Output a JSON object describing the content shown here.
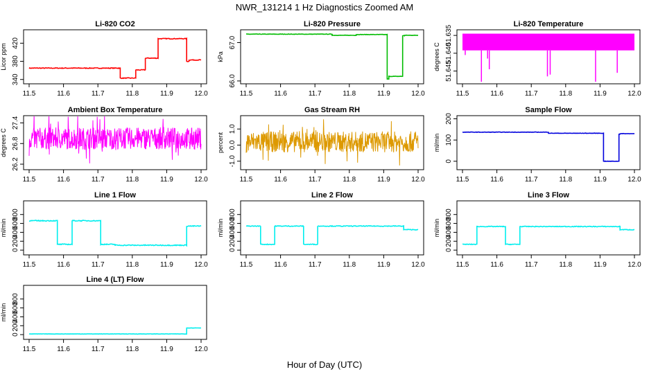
{
  "figure": {
    "title": "NWR_131214  1 Hz Diagnostics Zoomed AM",
    "xlabel": "Hour of Day (UTC)"
  },
  "chart_data": [
    {
      "type": "line",
      "title": "Li-820 CO2",
      "ylabel": "Licor ppm",
      "color": "#ff0000",
      "xlim": [
        11.5,
        12.0
      ],
      "ylim": [
        335,
        445
      ],
      "xticks": [
        "11.5",
        "11.6",
        "11.7",
        "11.8",
        "11.9",
        "12.0"
      ],
      "yticks": [
        {
          "v": 340,
          "l": "340"
        },
        {
          "v": 380,
          "l": "380"
        },
        {
          "v": 420,
          "l": "420"
        }
      ],
      "noise": 0.8,
      "segments": [
        [
          11.5,
          11.76,
          365
        ],
        [
          11.76,
          11.765,
          365
        ],
        [
          11.765,
          11.81,
          343
        ],
        [
          11.81,
          11.838,
          361
        ],
        [
          11.838,
          11.875,
          387
        ],
        [
          11.875,
          11.958,
          430
        ],
        [
          11.958,
          11.965,
          380
        ],
        [
          11.965,
          12.0,
          383
        ]
      ]
    },
    {
      "type": "line",
      "title": "Li-820 Pressure",
      "ylabel": "kPa",
      "color": "#00bb00",
      "xlim": [
        11.5,
        12.0
      ],
      "ylim": [
        65.98,
        67.28
      ],
      "xticks": [
        "11.5",
        "11.6",
        "11.7",
        "11.8",
        "11.9",
        "12.0"
      ],
      "yticks": [
        {
          "v": 66.0,
          "l": "66.0"
        },
        {
          "v": 67.0,
          "l": "67.0"
        }
      ],
      "noise": 0.005,
      "segments": [
        [
          11.5,
          11.75,
          67.22
        ],
        [
          11.75,
          11.82,
          67.19
        ],
        [
          11.82,
          11.91,
          67.21
        ],
        [
          11.91,
          11.915,
          66.05
        ],
        [
          11.915,
          11.955,
          66.12
        ],
        [
          11.955,
          11.96,
          67.18
        ],
        [
          11.96,
          12.0,
          67.19
        ]
      ]
    },
    {
      "type": "band",
      "title": "Li-820 Temperature",
      "ylabel": "degrees C",
      "color": "#ff00ff",
      "xlim": [
        11.5,
        12.0
      ],
      "ylim": [
        51.648,
        51.634
      ],
      "xticks": [
        "11.5",
        "11.6",
        "11.7",
        "11.8",
        "11.9",
        "12.0"
      ],
      "yticks": [
        {
          "v": 51.635,
          "l": "51.635"
        },
        {
          "v": 51.64,
          "l": "51.640"
        },
        {
          "v": 51.645,
          "l": "51.645"
        }
      ],
      "band": [
        51.6345,
        51.6392
      ],
      "spikes": [
        [
          11.508,
          51.6405
        ],
        [
          11.555,
          51.648
        ],
        [
          11.573,
          51.6415
        ],
        [
          11.578,
          51.6445
        ],
        [
          11.747,
          51.6465
        ],
        [
          11.755,
          51.646
        ],
        [
          11.887,
          51.648
        ],
        [
          11.95,
          51.6455
        ]
      ]
    },
    {
      "type": "noise",
      "title": "Ambient Box Temperature",
      "ylabel": "degrees C",
      "color": "#ff00ff",
      "xlim": [
        11.5,
        12.0
      ],
      "ylim": [
        26.1,
        27.55
      ],
      "xticks": [
        "11.5",
        "11.6",
        "11.7",
        "11.8",
        "11.9",
        "12.0"
      ],
      "yticks": [
        {
          "v": 26.2,
          "l": "26.2"
        },
        {
          "v": 26.8,
          "l": "26.8"
        },
        {
          "v": 27.4,
          "l": "27.4"
        }
      ],
      "center": 26.95,
      "amplitude": 0.32
    },
    {
      "type": "noise",
      "title": "Gas Stream RH",
      "ylabel": "percent",
      "color": "#dd9900",
      "xlim": [
        11.5,
        12.0
      ],
      "ylim": [
        -1.4,
        1.7
      ],
      "xticks": [
        "11.5",
        "11.6",
        "11.7",
        "11.8",
        "11.9",
        "12.0"
      ],
      "yticks": [
        {
          "v": -1.0,
          "l": "-1.0"
        },
        {
          "v": 0.0,
          "l": "0.0"
        },
        {
          "v": 1.0,
          "l": "1.0"
        }
      ],
      "center": 0.2,
      "amplitude": 0.65
    },
    {
      "type": "line",
      "title": "Sample Flow",
      "ylabel": "ml/min",
      "color": "#0000dd",
      "xlim": [
        11.5,
        12.0
      ],
      "ylim": [
        -30,
        205
      ],
      "xticks": [
        "11.5",
        "11.6",
        "11.7",
        "11.8",
        "11.9",
        "12.0"
      ],
      "yticks": [
        {
          "v": 0,
          "l": "0"
        },
        {
          "v": 100,
          "l": "100"
        },
        {
          "v": 200,
          "l": "200"
        }
      ],
      "noise": 0.8,
      "segments": [
        [
          11.5,
          11.75,
          137
        ],
        [
          11.75,
          11.91,
          132
        ],
        [
          11.91,
          11.915,
          0
        ],
        [
          11.915,
          11.955,
          0
        ],
        [
          11.955,
          11.958,
          128
        ],
        [
          11.958,
          12.0,
          130
        ]
      ]
    },
    {
      "type": "line",
      "title": "Line 1 Flow",
      "ylabel": "ml/min",
      "color": "#00eeee",
      "xlim": [
        11.5,
        12.0
      ],
      "ylim": [
        -60,
        1060
      ],
      "xticks": [
        "11.5",
        "11.6",
        "11.7",
        "11.8",
        "11.9",
        "12.0"
      ],
      "yticks": [
        {
          "v": 0,
          "l": "0"
        },
        {
          "v": 200,
          "l": "200"
        },
        {
          "v": 400,
          "l": "400"
        },
        {
          "v": 600,
          "l": "600"
        },
        {
          "v": 800,
          "l": "800"
        }
      ],
      "noise": 10,
      "segments": [
        [
          11.5,
          11.582,
          660
        ],
        [
          11.582,
          11.625,
          130
        ],
        [
          11.625,
          11.708,
          660
        ],
        [
          11.708,
          11.75,
          130
        ],
        [
          11.75,
          11.958,
          110
        ],
        [
          11.958,
          12.0,
          540
        ]
      ]
    },
    {
      "type": "line",
      "title": "Line 2 Flow",
      "ylabel": "ml/min",
      "color": "#00eeee",
      "xlim": [
        11.5,
        12.0
      ],
      "ylim": [
        -60,
        1060
      ],
      "xticks": [
        "11.5",
        "11.6",
        "11.7",
        "11.8",
        "11.9",
        "12.0"
      ],
      "yticks": [
        {
          "v": 0,
          "l": "0"
        },
        {
          "v": 200,
          "l": "200"
        },
        {
          "v": 400,
          "l": "400"
        },
        {
          "v": 600,
          "l": "600"
        },
        {
          "v": 800,
          "l": "800"
        }
      ],
      "noise": 8,
      "segments": [
        [
          11.5,
          11.542,
          540
        ],
        [
          11.542,
          11.583,
          130
        ],
        [
          11.583,
          11.667,
          540
        ],
        [
          11.667,
          11.708,
          130
        ],
        [
          11.708,
          11.958,
          540
        ],
        [
          11.958,
          12.0,
          460
        ]
      ]
    },
    {
      "type": "line",
      "title": "Line 3 Flow",
      "ylabel": "ml/min",
      "color": "#00eeee",
      "xlim": [
        11.5,
        12.0
      ],
      "ylim": [
        -60,
        1060
      ],
      "xticks": [
        "11.5",
        "11.6",
        "11.7",
        "11.8",
        "11.9",
        "12.0"
      ],
      "yticks": [
        {
          "v": 0,
          "l": "0"
        },
        {
          "v": 200,
          "l": "200"
        },
        {
          "v": 400,
          "l": "400"
        },
        {
          "v": 600,
          "l": "600"
        },
        {
          "v": 800,
          "l": "800"
        }
      ],
      "noise": 8,
      "segments": [
        [
          11.5,
          11.542,
          130
        ],
        [
          11.542,
          11.625,
          530
        ],
        [
          11.625,
          11.667,
          130
        ],
        [
          11.667,
          11.958,
          530
        ],
        [
          11.958,
          12.0,
          460
        ]
      ]
    },
    {
      "type": "line",
      "title": "Line 4 (LT) Flow",
      "ylabel": "ml/min",
      "color": "#00eeee",
      "xlim": [
        11.5,
        12.0
      ],
      "ylim": [
        -60,
        1060
      ],
      "xticks": [
        "11.5",
        "11.6",
        "11.7",
        "11.8",
        "11.9",
        "12.0"
      ],
      "yticks": [
        {
          "v": 0,
          "l": "0"
        },
        {
          "v": 200,
          "l": "200"
        },
        {
          "v": 400,
          "l": "400"
        },
        {
          "v": 600,
          "l": "600"
        },
        {
          "v": 800,
          "l": "800"
        }
      ],
      "noise": 3,
      "segments": [
        [
          11.5,
          11.958,
          15
        ],
        [
          11.958,
          12.0,
          150
        ]
      ]
    }
  ]
}
